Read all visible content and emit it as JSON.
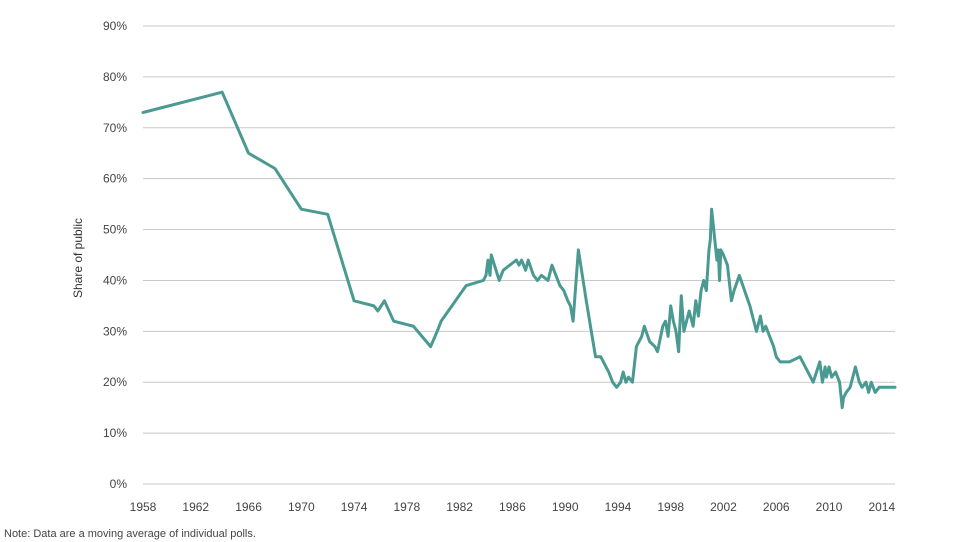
{
  "note": "Note: Data are a moving average of individual polls.",
  "colors": {
    "line": "#4a9a92",
    "grid": "#c9c9c9",
    "text": "#444444"
  },
  "chart_data": {
    "type": "line",
    "title": "",
    "xlabel": "",
    "ylabel": "Share of public",
    "xlim": [
      1958,
      2015
    ],
    "ylim": [
      0,
      90
    ],
    "x_ticks": [
      1958,
      1962,
      1966,
      1970,
      1974,
      1978,
      1982,
      1986,
      1990,
      1994,
      1998,
      2002,
      2006,
      2010,
      2014
    ],
    "y_ticks": [
      0,
      10,
      20,
      30,
      40,
      50,
      60,
      70,
      80,
      90
    ],
    "y_tick_labels": [
      "0%",
      "10%",
      "20%",
      "30%",
      "40%",
      "50%",
      "60%",
      "70%",
      "80%",
      "90%"
    ],
    "grid": "horizontal",
    "legend": "none",
    "series": [
      {
        "x": [
          1958,
          1964,
          1966,
          1968,
          1970,
          1972,
          1974,
          1975.5,
          1975.8,
          1976.3,
          1977,
          1978.5,
          1979.8,
          1980.3,
          1980.6,
          1982.5,
          1983.8,
          1984.0,
          1984.15,
          1984.3,
          1984.4,
          1985.0,
          1985.3,
          1986.3,
          1986.5,
          1986.7,
          1987.0,
          1987.2,
          1987.6,
          1987.9,
          1988.2,
          1988.7,
          1989.0,
          1989.6,
          1989.9,
          1990.2,
          1990.4,
          1990.6,
          1991.0,
          1991.6,
          1992.3,
          1992.7,
          1993.3,
          1993.6,
          1993.9,
          1994.2,
          1994.4,
          1994.6,
          1994.8,
          1995.1,
          1995.4,
          1995.8,
          1996.0,
          1996.4,
          1996.8,
          1997.0,
          1997.4,
          1997.6,
          1997.8,
          1998.0,
          1998.2,
          1998.4,
          1998.6,
          1998.8,
          1999.0,
          1999.2,
          1999.4,
          1999.7,
          1999.9,
          2000.1,
          2000.3,
          2000.5,
          2000.7,
          2000.9,
          2001.0,
          2001.1,
          2001.3,
          2001.5,
          2001.6,
          2001.7,
          2001.8,
          2002.0,
          2002.3,
          2002.6,
          2002.8,
          2003.2,
          2003.6,
          2004.0,
          2004.5,
          2004.8,
          2005.0,
          2005.2,
          2005.5,
          2005.8,
          2006.0,
          2006.3,
          2007.0,
          2007.8,
          2008.2,
          2008.8,
          2009.3,
          2009.5,
          2009.7,
          2009.8,
          2010.0,
          2010.2,
          2010.5,
          2010.8,
          2011.0,
          2011.1,
          2011.3,
          2011.6,
          2012.0,
          2012.3,
          2012.5,
          2012.8,
          2013.0,
          2013.2,
          2013.5,
          2013.8,
          2014.2,
          2015.0
        ],
        "y": [
          73,
          77,
          65,
          62,
          54,
          53,
          36,
          35,
          34,
          36,
          32,
          31,
          27,
          30,
          32,
          39,
          40,
          41,
          44,
          41,
          45,
          40,
          42,
          44,
          43,
          44,
          42,
          44,
          41,
          40,
          41,
          40,
          43,
          39,
          38,
          36,
          35,
          32,
          46,
          36,
          25,
          25,
          22,
          20,
          19,
          20,
          22,
          20,
          21,
          20,
          27,
          29,
          31,
          28,
          27,
          26,
          31,
          32,
          29,
          35,
          32,
          30,
          26,
          37,
          30,
          32,
          34,
          31,
          36,
          33,
          38,
          40,
          38,
          46,
          48,
          54,
          49,
          44,
          46,
          40,
          46,
          45,
          43,
          36,
          38,
          41,
          38,
          35,
          30,
          33,
          30,
          31,
          29,
          27,
          25,
          24,
          24,
          25,
          23,
          20,
          24,
          20,
          23,
          21,
          23,
          21,
          22,
          20,
          15,
          17,
          18,
          19,
          23,
          20,
          19,
          20,
          18,
          20,
          18,
          19,
          19,
          19
        ]
      }
    ]
  }
}
